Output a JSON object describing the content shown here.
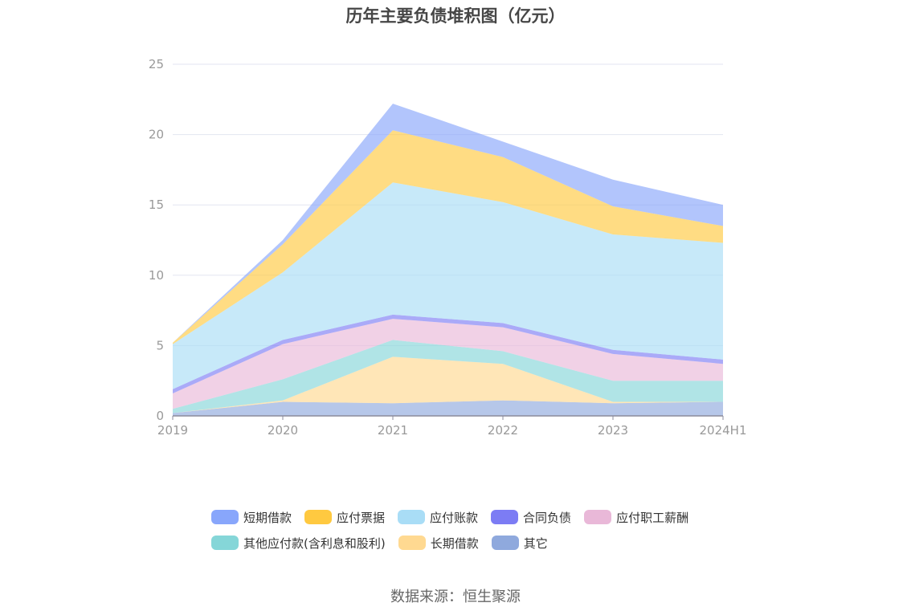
{
  "chart_data": {
    "type": "area",
    "stacked": true,
    "title": "历年主要负债堆积图（亿元）",
    "x": [
      "2019",
      "2020",
      "2021",
      "2022",
      "2023",
      "2024H1"
    ],
    "ylim": [
      0,
      25
    ],
    "yticks": [
      0,
      5,
      10,
      15,
      20,
      25
    ],
    "grid": true,
    "legend_position": "bottom",
    "series": [
      {
        "name": "其它",
        "color": "#8fa9dd",
        "values": [
          0.2,
          1.0,
          0.9,
          1.1,
          0.9,
          1.0
        ]
      },
      {
        "name": "长期借款",
        "color": "#ffd991",
        "values": [
          0.0,
          0.1,
          3.3,
          2.6,
          0.1,
          0.0
        ]
      },
      {
        "name": "其他应付款(含利息和股利)",
        "color": "#85d6d8",
        "values": [
          0.3,
          1.5,
          1.2,
          0.9,
          1.5,
          1.5
        ]
      },
      {
        "name": "应付职工薪酬",
        "color": "#e9b8d8",
        "values": [
          1.1,
          2.5,
          1.5,
          1.7,
          1.9,
          1.2
        ]
      },
      {
        "name": "合同负债",
        "color": "#7c7cf4",
        "values": [
          0.3,
          0.3,
          0.3,
          0.3,
          0.3,
          0.3
        ]
      },
      {
        "name": "应付账款",
        "color": "#a9ddf6",
        "values": [
          3.2,
          4.8,
          9.4,
          8.6,
          8.2,
          8.3
        ]
      },
      {
        "name": "应付票据",
        "color": "#ffc940",
        "values": [
          0.1,
          2.0,
          3.7,
          3.2,
          2.0,
          1.2
        ]
      },
      {
        "name": "短期借款",
        "color": "#88a6fb",
        "values": [
          0.0,
          0.3,
          1.9,
          1.1,
          1.9,
          1.5
        ]
      }
    ]
  },
  "legend": {
    "rows": [
      [
        "短期借款",
        "应付票据",
        "应付账款",
        "合同负债",
        "应付职工薪酬"
      ],
      [
        "其他应付款(含利息和股利)",
        "长期借款",
        "其它"
      ]
    ]
  },
  "source": "数据来源：恒生聚源"
}
